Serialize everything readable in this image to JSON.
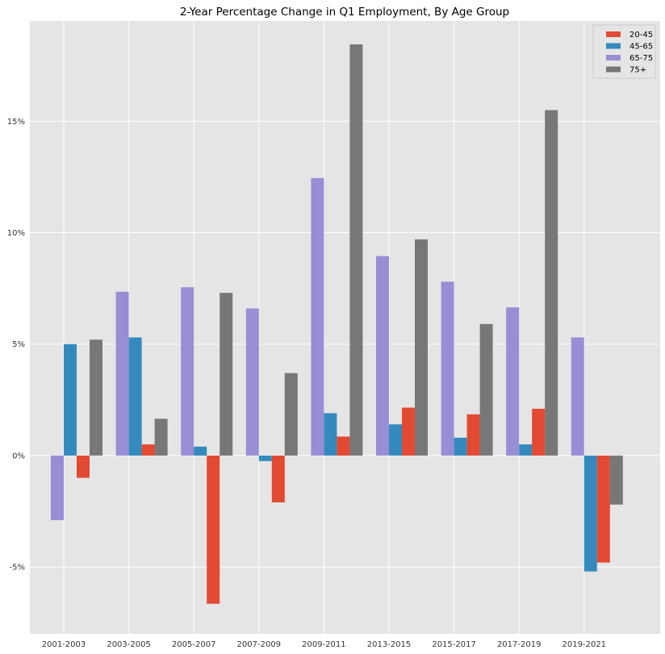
{
  "chart_data": {
    "type": "bar",
    "title": "2-Year Percentage Change in Q1 Employment, By Age Group",
    "xlabel": "",
    "ylabel": "",
    "categories": [
      "2001-2003",
      "2003-2005",
      "2005-2007",
      "2007-2009",
      "2009-2011",
      "2013-2015",
      "2015-2017",
      "2017-2019",
      "2019-2021"
    ],
    "series": [
      {
        "name": "65-75",
        "color": "#988ED5",
        "values": [
          -2.9,
          7.35,
          7.55,
          6.6,
          12.45,
          8.95,
          7.8,
          6.65,
          5.3
        ]
      },
      {
        "name": "45-65",
        "color": "#348ABD",
        "values": [
          5.0,
          5.3,
          0.4,
          -0.25,
          1.9,
          1.4,
          0.8,
          0.5,
          -5.2
        ]
      },
      {
        "name": "20-45",
        "color": "#E24A33",
        "values": [
          -1.0,
          0.5,
          -6.65,
          -2.1,
          0.85,
          2.15,
          1.85,
          2.1,
          -4.8
        ]
      },
      {
        "name": "75+",
        "color": "#777777",
        "values": [
          5.2,
          1.65,
          7.3,
          3.7,
          18.45,
          9.7,
          5.9,
          15.5,
          -2.2
        ]
      }
    ],
    "legend_order": [
      "20-45",
      "45-65",
      "65-75",
      "75+"
    ],
    "legend_position": "top-right",
    "yticks": [
      -5,
      0,
      5,
      10,
      15
    ],
    "ytick_labels": [
      "-5%",
      "0%",
      "5%",
      "10%",
      "15%"
    ],
    "ylim": [
      -8,
      19.5
    ],
    "grid": true,
    "plot_background": "#E5E5E5",
    "grid_color": "#FFFFFF"
  }
}
